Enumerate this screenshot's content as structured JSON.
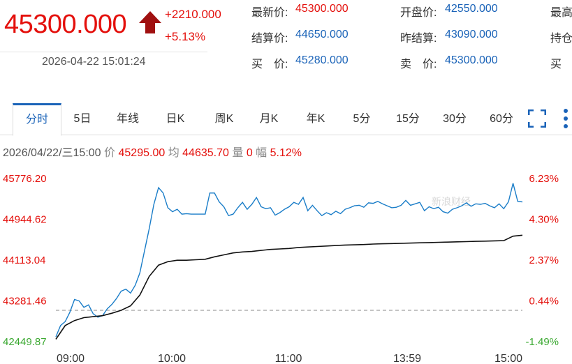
{
  "quote": {
    "price": "45300.000",
    "change": "+2210.000",
    "change_pct": "+5.13%",
    "datetime": "2026-04-22 15:01:24",
    "fields": [
      {
        "label": "最新价:",
        "value": "45300.000",
        "color": "red"
      },
      {
        "label": "开盘价:",
        "value": "42550.000",
        "color": "blue"
      },
      {
        "label": "最高",
        "value": "",
        "color": "blue"
      },
      {
        "label": "结算价:",
        "value": "44650.000",
        "color": "blue"
      },
      {
        "label": "昨结算:",
        "value": "43090.000",
        "color": "blue"
      },
      {
        "label": "持仓",
        "value": "",
        "color": "blue"
      },
      {
        "label": "买　价:",
        "value": "45280.000",
        "color": "blue"
      },
      {
        "label": "卖　价:",
        "value": "45300.000",
        "color": "blue"
      },
      {
        "label": "买",
        "value": "",
        "color": "blue"
      }
    ]
  },
  "tabs": [
    {
      "label": "分时",
      "active": true
    },
    {
      "label": "5日"
    },
    {
      "label": "年线"
    },
    {
      "label": "日K"
    },
    {
      "label": "周K"
    },
    {
      "label": "月K"
    },
    {
      "label": "年K"
    },
    {
      "label": "5分"
    },
    {
      "label": "15分"
    },
    {
      "label": "30分"
    },
    {
      "label": "60分"
    }
  ],
  "icons": {
    "fullscreen": "fullscreen-icon",
    "more": "more-vertical-icon"
  },
  "info": {
    "datetime": "2026/04/22/三15:00",
    "price_label": "价",
    "price": "45295.00",
    "avg_label": "均",
    "avg": "44635.70",
    "vol_label": "量",
    "vol": "0",
    "amp_label": "幅",
    "amp": "5.12%"
  },
  "watermark": "新浪财经",
  "chart_data": {
    "type": "line",
    "yticks_left": [
      "45776.20",
      "44944.62",
      "44113.04",
      "43281.46",
      "42449.87"
    ],
    "yticks_right": [
      "6.23%",
      "4.30%",
      "2.37%",
      "0.44%",
      "-1.49%"
    ],
    "ylim": [
      42449.87,
      45776.2
    ],
    "baseline": 43090,
    "xticks": [
      "09:00",
      "10:00",
      "11:00",
      "13:59",
      "15:00"
    ],
    "series": [
      {
        "color": "#1a7dc8",
        "x": [
          0,
          1,
          2,
          3,
          4,
          5,
          6,
          7,
          8,
          9,
          10,
          11,
          12,
          13,
          14,
          15,
          16,
          17,
          18,
          19,
          20,
          21,
          22,
          23,
          24,
          25,
          26,
          27,
          28,
          29,
          30,
          31,
          32,
          33,
          34,
          35,
          36,
          37,
          38,
          39,
          40,
          41,
          42,
          43,
          44,
          45,
          46,
          47,
          48,
          49,
          50,
          51,
          52,
          53,
          54,
          55,
          56,
          57,
          58,
          59,
          60,
          61,
          62,
          63,
          64,
          65,
          66,
          67,
          68,
          69,
          70,
          71,
          72,
          73,
          74,
          75,
          76,
          77,
          78,
          79,
          80,
          81,
          82,
          83,
          84,
          85,
          86,
          87,
          88,
          89,
          90,
          91,
          92,
          93,
          94,
          95,
          96,
          97,
          98,
          99,
          100
        ],
        "values": [
          42550,
          42780,
          42860,
          43050,
          43310,
          43280,
          43150,
          43200,
          43020,
          42950,
          42980,
          43120,
          43210,
          43330,
          43480,
          43520,
          43440,
          43600,
          43850,
          44300,
          44750,
          45250,
          45590,
          45480,
          45180,
          45100,
          45150,
          45050,
          45060,
          45050,
          45050,
          45050,
          45050,
          45480,
          45480,
          45300,
          45200,
          45020,
          45050,
          45180,
          45290,
          45150,
          45250,
          45390,
          45200,
          45160,
          45180,
          45030,
          45080,
          45150,
          45200,
          45290,
          45250,
          45390,
          45120,
          45230,
          45120,
          45020,
          45080,
          45040,
          45110,
          45060,
          45150,
          45180,
          45220,
          45230,
          45190,
          45280,
          45270,
          45310,
          45260,
          45220,
          45180,
          45190,
          45230,
          45330,
          45230,
          45260,
          45290,
          45120,
          45200,
          45160,
          45190,
          45100,
          45070,
          45150,
          45180,
          45220,
          45280,
          45210,
          45260,
          45250,
          45270,
          45220,
          45180,
          45260,
          45160,
          45300,
          45680,
          45310,
          45300
        ]
      },
      {
        "color": "#111111",
        "x": [
          0,
          2,
          4,
          6,
          8,
          10,
          12,
          14,
          16,
          18,
          20,
          22,
          24,
          26,
          28,
          30,
          32,
          34,
          36,
          38,
          40,
          42,
          44,
          46,
          48,
          50,
          52,
          54,
          56,
          58,
          60,
          62,
          64,
          66,
          68,
          70,
          72,
          74,
          76,
          78,
          80,
          82,
          84,
          86,
          88,
          90,
          92,
          94,
          96,
          98,
          100
        ],
        "values": [
          42500,
          42780,
          42880,
          42940,
          42960,
          42980,
          43030,
          43090,
          43180,
          43400,
          43780,
          44010,
          44080,
          44110,
          44110,
          44120,
          44130,
          44180,
          44220,
          44260,
          44280,
          44290,
          44310,
          44330,
          44340,
          44350,
          44370,
          44380,
          44390,
          44400,
          44410,
          44420,
          44425,
          44430,
          44440,
          44445,
          44450,
          44455,
          44460,
          44465,
          44470,
          44475,
          44480,
          44485,
          44490,
          44495,
          44500,
          44505,
          44510,
          44600,
          44620
        ]
      }
    ]
  }
}
